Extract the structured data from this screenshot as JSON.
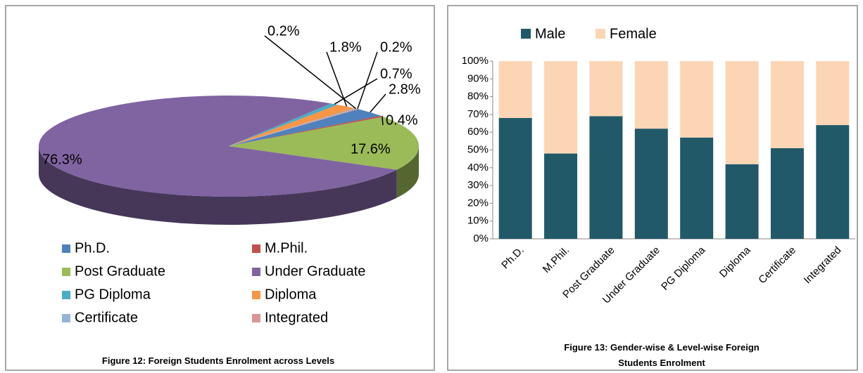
{
  "chart_data": [
    {
      "type": "pie",
      "caption": "Figure 12: Foreign Students Enrolment across Levels",
      "categories": [
        "Ph.D.",
        "M.Phil.",
        "Post Graduate",
        "Under Graduate",
        "PG Diploma",
        "Diploma",
        "Certificate",
        "Integrated"
      ],
      "values": [
        2.8,
        0.4,
        17.6,
        76.3,
        0.7,
        1.8,
        0.2,
        0.2
      ],
      "value_labels": [
        "2.8%",
        "0.4%",
        "17.6%",
        "76.3%",
        "0.7%",
        "1.8%",
        "0.2%",
        "0.2%"
      ],
      "colors": [
        "#4f81bd",
        "#c0504d",
        "#9bbb59",
        "#8064a2",
        "#4bacc6",
        "#f79646",
        "#95b3d7",
        "#d99694"
      ],
      "legend": "bottom"
    },
    {
      "type": "stacked_bar",
      "caption": "Figure 13: Gender-wise & Level-wise Foreign Students Enrolment",
      "categories": [
        "Ph.D.",
        "M.Phil.",
        "Post Graduate",
        "Under Graduate",
        "PG Diploma",
        "Diploma",
        "Certificate",
        "Integrated"
      ],
      "series": [
        {
          "name": "Male",
          "color": "#215968",
          "values": [
            68,
            48,
            69,
            62,
            57,
            42,
            51,
            64
          ]
        },
        {
          "name": "Female",
          "color": "#fcd5b5",
          "values": [
            32,
            52,
            31,
            38,
            43,
            58,
            49,
            36
          ]
        }
      ],
      "ylim": [
        0,
        100
      ],
      "yticks": [
        {
          "value": 0,
          "label": "0%"
        },
        {
          "value": 10,
          "label": "10%"
        },
        {
          "value": 20,
          "label": "20%"
        },
        {
          "value": 30,
          "label": "30%"
        },
        {
          "value": 40,
          "label": "40%"
        },
        {
          "value": 50,
          "label": "50%"
        },
        {
          "value": 60,
          "label": "60%"
        },
        {
          "value": 70,
          "label": "70%"
        },
        {
          "value": 80,
          "label": "80%"
        },
        {
          "value": 90,
          "label": "90%"
        },
        {
          "value": 100,
          "label": "100%"
        }
      ],
      "legend": "top"
    }
  ]
}
